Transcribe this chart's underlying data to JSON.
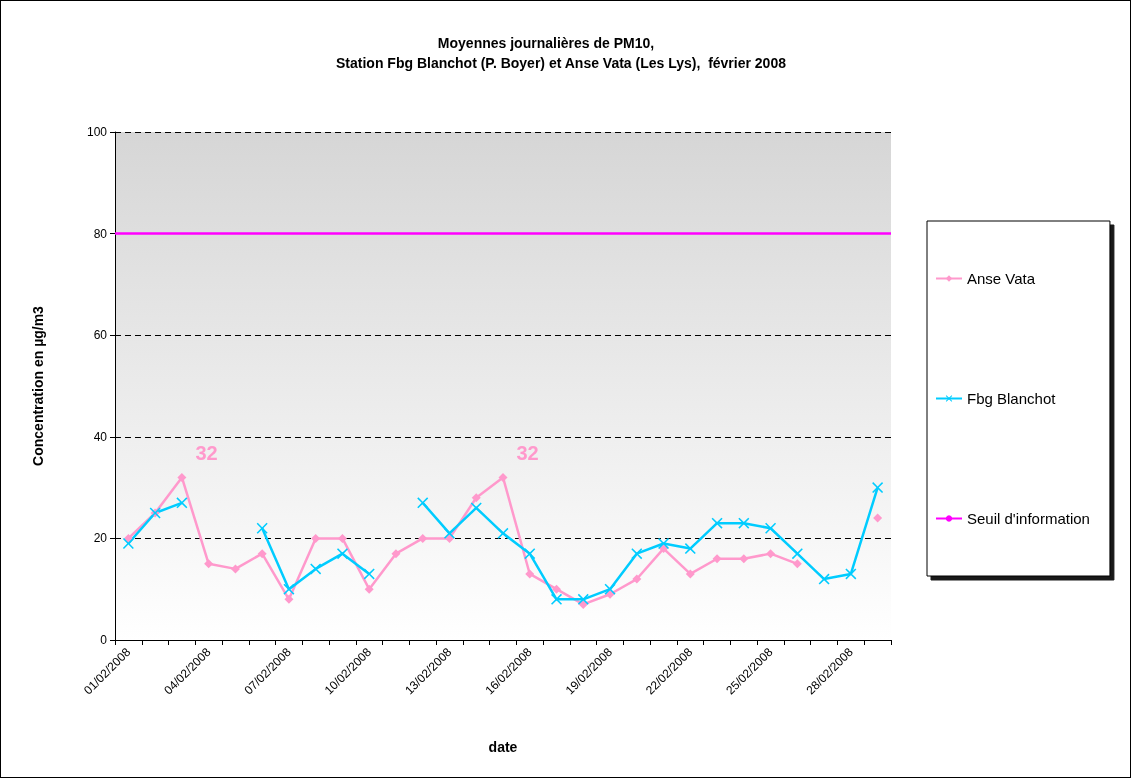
{
  "chart_data": {
    "type": "line",
    "title": "Moyennes journalières de PM10,",
    "subtitle": "Station Fbg Blanchot (P. Boyer) et Anse Vata (Les Lys),  février 2008",
    "xlabel": "date",
    "ylabel": "Concentration en µg/m3",
    "categories": [
      "01/02/2008",
      null,
      null,
      "04/02/2008",
      null,
      null,
      "07/02/2008",
      null,
      null,
      "10/02/2008",
      null,
      null,
      "13/02/2008",
      null,
      null,
      "16/02/2008",
      null,
      null,
      "19/02/2008",
      null,
      null,
      "22/02/2008",
      null,
      null,
      "25/02/2008",
      null,
      null,
      "28/02/2008",
      null
    ],
    "series": [
      {
        "name": "Anse Vata",
        "color": "#ff99cc",
        "marker": "diamond",
        "values": [
          20,
          25,
          32,
          15,
          14,
          17,
          8,
          20,
          20,
          10,
          17,
          20,
          20,
          28,
          32,
          13,
          10,
          7,
          9,
          12,
          18,
          13,
          16,
          16,
          17,
          15,
          null,
          null,
          24
        ],
        "value_labels": [
          null,
          null,
          "32",
          null,
          null,
          null,
          null,
          null,
          null,
          null,
          null,
          null,
          null,
          null,
          "32",
          null,
          null,
          null,
          null,
          null,
          null,
          null,
          null,
          null,
          null,
          null,
          null,
          null,
          null
        ]
      },
      {
        "name": "Fbg Blanchot",
        "color": "#00ccff",
        "marker": "cross",
        "values": [
          19,
          25,
          27,
          null,
          null,
          22,
          10,
          14,
          17,
          13,
          null,
          27,
          21,
          26,
          21,
          17,
          8,
          8,
          10,
          17,
          19,
          18,
          23,
          23,
          22,
          17,
          12,
          13,
          30
        ]
      }
    ],
    "ref_lines": [
      {
        "axis": "y",
        "value": 80,
        "label": "Seuil d'information",
        "color": "#ff00ff",
        "line_style": "solid"
      }
    ],
    "ylim": [
      0,
      100
    ],
    "yticks": [
      0,
      20,
      40,
      60,
      80,
      100
    ],
    "grid": "y",
    "legend": "right"
  }
}
